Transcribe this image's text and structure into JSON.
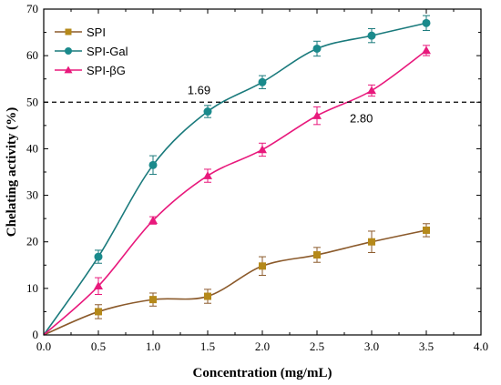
{
  "chart_data": {
    "type": "line",
    "xlabel": "Concentration (mg/mL)",
    "ylabel": "Chelating activity (%)",
    "xlim": [
      0.0,
      4.0
    ],
    "ylim": [
      0,
      70
    ],
    "xticks": [
      "0.0",
      "0.5",
      "1.0",
      "1.5",
      "2.0",
      "2.5",
      "3.0",
      "3.5",
      "4.0"
    ],
    "yticks": [
      "0",
      "10",
      "20",
      "30",
      "40",
      "50",
      "60",
      "70"
    ],
    "grid": false,
    "legend_position": "top-left",
    "reference_line": {
      "y": 50,
      "style": "dashed"
    },
    "annotations": [
      {
        "text": "1.69",
        "x": 1.69,
        "y": 50
      },
      {
        "text": "2.80",
        "x": 2.8,
        "y": 50
      }
    ],
    "series": [
      {
        "name": "SPI",
        "color": "#b5891a",
        "line_color": "#8b5a2b",
        "marker": "square",
        "x": [
          0.0,
          0.5,
          1.0,
          1.5,
          2.0,
          2.5,
          3.0,
          3.5
        ],
        "values": [
          0,
          5.0,
          7.6,
          8.3,
          14.8,
          17.2,
          20.0,
          22.5
        ],
        "errors": [
          0,
          1.5,
          1.4,
          1.5,
          2.0,
          1.6,
          2.3,
          1.4
        ]
      },
      {
        "name": "SPI-Gal",
        "color": "#1a8a8c",
        "line_color": "#1a7a7c",
        "marker": "circle",
        "x": [
          0.0,
          0.5,
          1.0,
          1.5,
          2.0,
          2.5,
          3.0,
          3.5
        ],
        "values": [
          0,
          16.8,
          36.5,
          48.0,
          54.3,
          61.5,
          64.3,
          67.0
        ],
        "errors": [
          0,
          1.4,
          2.0,
          1.3,
          1.4,
          1.6,
          1.5,
          1.6
        ]
      },
      {
        "name": "SPI-βG",
        "color": "#e8197c",
        "line_color": "#e8197c",
        "marker": "triangle",
        "x": [
          0.0,
          0.5,
          1.0,
          1.5,
          2.0,
          2.5,
          3.0,
          3.5
        ],
        "values": [
          0,
          10.5,
          24.6,
          34.2,
          39.8,
          47.1,
          52.5,
          61.1
        ],
        "errors": [
          0,
          1.8,
          0.8,
          1.4,
          1.4,
          1.9,
          1.2,
          1.1
        ]
      }
    ]
  }
}
